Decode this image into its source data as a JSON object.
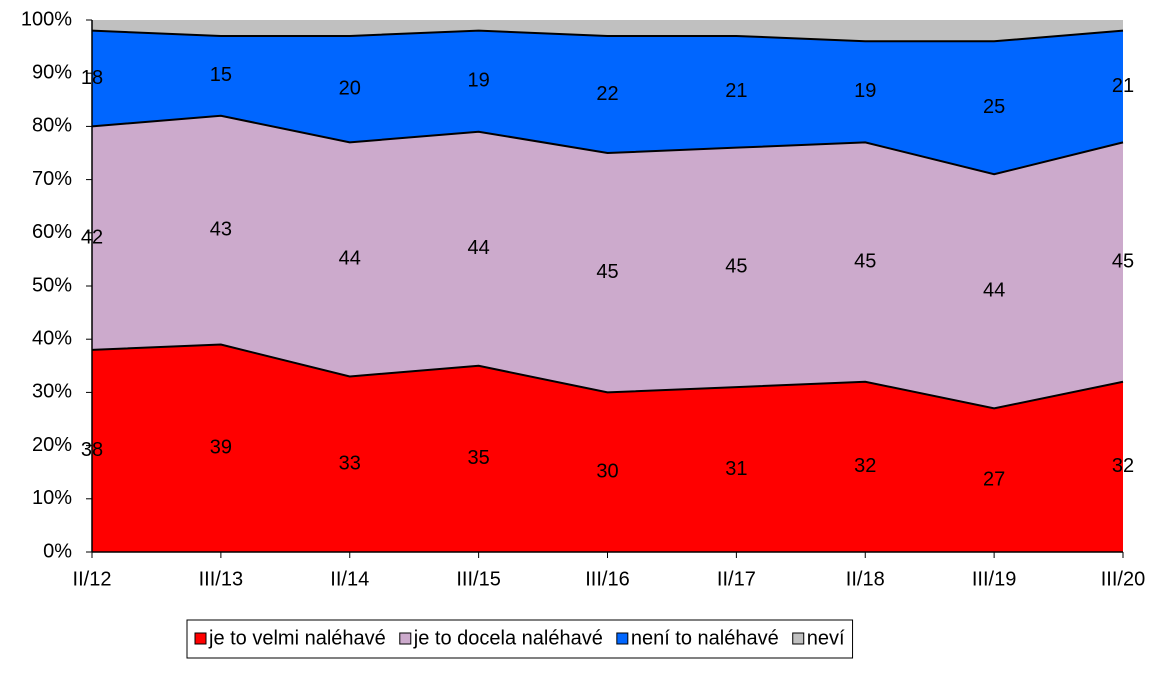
{
  "chart_data": {
    "type": "stacked_area",
    "categories": [
      "II/12",
      "III/13",
      "II/14",
      "III/15",
      "III/16",
      "II/17",
      "II/18",
      "III/19",
      "III/20"
    ],
    "series": [
      {
        "name": "je to velmi naléhavé",
        "color": "#ff0000",
        "values": [
          38,
          39,
          33,
          35,
          30,
          31,
          32,
          27,
          32
        ],
        "labels": true
      },
      {
        "name": "je to docela naléhavé",
        "color": "#ccaacc",
        "values": [
          42,
          43,
          44,
          44,
          45,
          45,
          45,
          44,
          45
        ],
        "labels": true
      },
      {
        "name": "není to naléhavé",
        "color": "#0066ff",
        "values": [
          18,
          15,
          20,
          19,
          22,
          21,
          19,
          25,
          21
        ],
        "labels": true
      },
      {
        "name": "neví",
        "color": "#c0c0c0",
        "values": [
          2,
          3,
          3,
          2,
          3,
          3,
          4,
          4,
          2
        ],
        "labels": false
      }
    ],
    "ylim": [
      0,
      100
    ],
    "yticks": [
      {
        "value": 0,
        "label": "0%"
      },
      {
        "value": 10,
        "label": "10%"
      },
      {
        "value": 20,
        "label": "20%"
      },
      {
        "value": 30,
        "label": "30%"
      },
      {
        "value": 40,
        "label": "40%"
      },
      {
        "value": 50,
        "label": "50%"
      },
      {
        "value": 60,
        "label": "60%"
      },
      {
        "value": 70,
        "label": "70%"
      },
      {
        "value": 80,
        "label": "80%"
      },
      {
        "value": 90,
        "label": "90%"
      },
      {
        "value": 100,
        "label": "100%"
      }
    ],
    "legend": "bottom"
  }
}
